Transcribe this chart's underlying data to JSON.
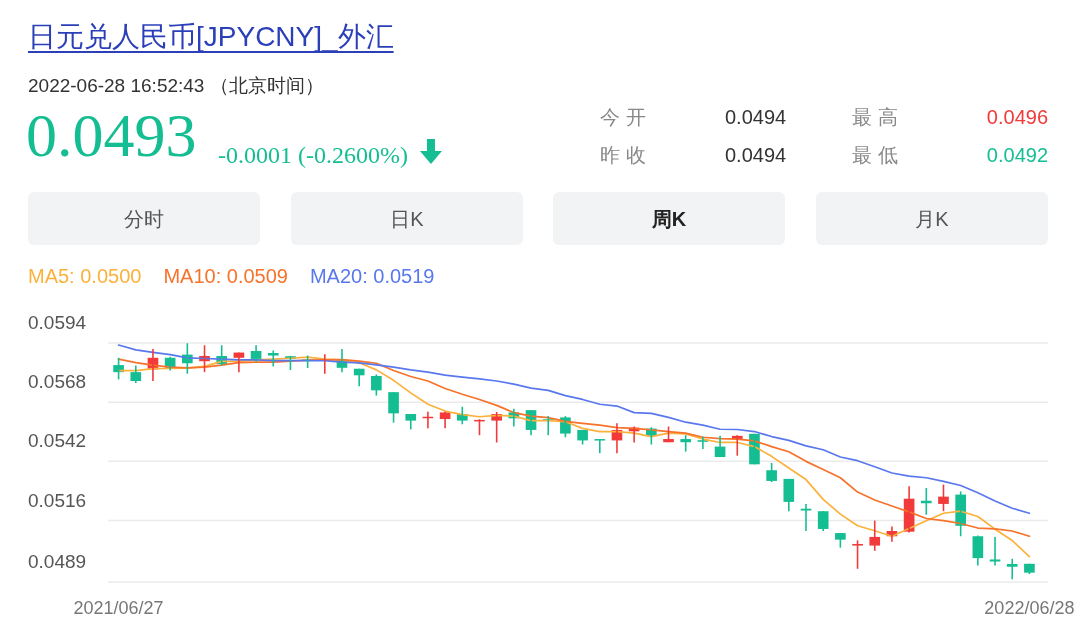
{
  "chart_data": {
    "type": "candlestick",
    "title": "日元兑人民币[JPYCNY]_外汇",
    "subtitle": "2022-06-28 16:52:43 （北京时间）",
    "annotations": [
      "0.0493",
      "-0.0001 (-0.2600%)",
      "今 开",
      "0.0494",
      "最 高",
      "0.0496",
      "昨 收",
      "0.0494",
      "最 低",
      "0.0492",
      "分时",
      "日K",
      "周K",
      "月K"
    ],
    "categories": [
      "2021/06/27",
      null,
      null,
      null,
      null,
      null,
      null,
      null,
      null,
      null,
      null,
      null,
      null,
      null,
      null,
      null,
      null,
      null,
      null,
      null,
      null,
      null,
      null,
      null,
      null,
      null,
      null,
      null,
      null,
      null,
      null,
      null,
      null,
      null,
      null,
      null,
      null,
      null,
      null,
      null,
      null,
      null,
      null,
      null,
      null,
      null,
      null,
      null,
      null,
      null,
      null,
      null,
      null,
      "2022/06/28"
    ],
    "ohlc": [
      [
        0.05843,
        0.05875,
        0.0578,
        0.05812
      ],
      [
        0.05812,
        0.05841,
        0.05764,
        0.05773
      ],
      [
        0.05824,
        0.05914,
        0.05773,
        0.05875
      ],
      [
        0.05875,
        0.0588,
        0.05819,
        0.05831
      ],
      [
        0.05889,
        0.05939,
        0.05805,
        0.05851
      ],
      [
        0.0586,
        0.0593,
        0.05812,
        0.05883
      ],
      [
        0.05883,
        0.0593,
        0.05841,
        0.05847
      ],
      [
        0.05875,
        0.05898,
        0.05812,
        0.05898
      ],
      [
        0.05905,
        0.0593,
        0.05856,
        0.0587
      ],
      [
        0.05896,
        0.05907,
        0.05837,
        0.05885
      ],
      [
        0.05882,
        0.05883,
        0.05821,
        0.0587
      ],
      [
        0.05867,
        0.05885,
        0.0583,
        0.05865
      ],
      [
        0.05866,
        0.05891,
        0.05805,
        0.05869
      ],
      [
        0.05867,
        0.05914,
        0.05812,
        0.05831
      ],
      [
        0.05827,
        0.05827,
        0.0575,
        0.05798
      ],
      [
        0.05795,
        0.05802,
        0.05709,
        0.05732
      ],
      [
        0.05724,
        0.05724,
        0.0559,
        0.05631
      ],
      [
        0.05628,
        0.05628,
        0.0556,
        0.05599
      ],
      [
        0.05613,
        0.05638,
        0.05565,
        0.05616
      ],
      [
        0.05606,
        0.05638,
        0.05565,
        0.05635
      ],
      [
        0.05628,
        0.0566,
        0.05583,
        0.05599
      ],
      [
        0.05599,
        0.05605,
        0.05535,
        0.05602
      ],
      [
        0.05599,
        0.05637,
        0.05503,
        0.05628
      ],
      [
        0.05635,
        0.05651,
        0.05573,
        0.05609
      ],
      [
        0.05645,
        0.05645,
        0.05535,
        0.05558
      ],
      [
        0.05605,
        0.05619,
        0.05535,
        0.05602
      ],
      [
        0.05613,
        0.05619,
        0.05526,
        0.05542
      ],
      [
        0.05558,
        0.05558,
        0.05494,
        0.05512
      ],
      [
        0.05518,
        0.05518,
        0.05456,
        0.05515
      ],
      [
        0.05512,
        0.05587,
        0.05456,
        0.05558
      ],
      [
        0.05552,
        0.05573,
        0.05503,
        0.05568
      ],
      [
        0.05564,
        0.0557,
        0.05494,
        0.05532
      ],
      [
        0.05504,
        0.05573,
        0.05504,
        0.05518
      ],
      [
        0.05518,
        0.05535,
        0.05463,
        0.05504
      ],
      [
        0.05513,
        0.05529,
        0.05474,
        0.05506
      ],
      [
        0.05485,
        0.05532,
        0.05439,
        0.05439
      ],
      [
        0.05518,
        0.05535,
        0.05445,
        0.05532
      ],
      [
        0.05541,
        0.05541,
        0.05407,
        0.05407
      ],
      [
        0.05381,
        0.05413,
        0.05329,
        0.05334
      ],
      [
        0.05343,
        0.05343,
        0.05201,
        0.05242
      ],
      [
        0.05212,
        0.05233,
        0.05114,
        0.05204
      ],
      [
        0.05201,
        0.05201,
        0.05114,
        0.05123
      ],
      [
        0.05105,
        0.05105,
        0.05041,
        0.05076
      ],
      [
        0.0505,
        0.05073,
        0.04948,
        0.05057
      ],
      [
        0.0505,
        0.0516,
        0.05027,
        0.05088
      ],
      [
        0.05091,
        0.05134,
        0.05067,
        0.05114
      ],
      [
        0.05111,
        0.05311,
        0.05108,
        0.05256
      ],
      [
        0.05247,
        0.05303,
        0.05186,
        0.05236
      ],
      [
        0.05233,
        0.05318,
        0.05201,
        0.05265
      ],
      [
        0.05274,
        0.05288,
        0.05091,
        0.05137
      ],
      [
        0.05091,
        0.05094,
        0.04963,
        0.04995
      ],
      [
        0.04989,
        0.05088,
        0.04963,
        0.0498
      ],
      [
        0.04969,
        0.04992,
        0.04902,
        0.04957
      ],
      [
        0.0497,
        0.0497,
        0.04925,
        0.04931
      ]
    ],
    "series": [
      {
        "type": "line",
        "name": "MA5: 0.0500",
        "color": "#fbb13c",
        "values": [
          0.05819,
          0.05819,
          0.05827,
          0.05828,
          0.0583,
          0.05837,
          0.05859,
          0.05859,
          0.05866,
          0.05869,
          0.05873,
          0.05878,
          0.05869,
          0.05866,
          0.05853,
          0.05822,
          0.05776,
          0.05721,
          0.05671,
          0.05641,
          0.05625,
          0.05616,
          0.05622,
          0.05619,
          0.05599,
          0.05599,
          0.05594,
          0.05565,
          0.05551,
          0.05551,
          0.05544,
          0.05529,
          0.05544,
          0.05541,
          0.05518,
          0.05503,
          0.05503,
          0.05485,
          0.05442,
          0.05391,
          0.0534,
          0.05253,
          0.05188,
          0.05137,
          0.05115,
          0.05091,
          0.05125,
          0.05159,
          0.05192,
          0.05201,
          0.05178,
          0.05122,
          0.05072,
          0.05002
        ]
      },
      {
        "type": "line",
        "name": "MA10: 0.0509",
        "color": "#f7722a",
        "values": [
          0.05869,
          0.05854,
          0.05843,
          0.05834,
          0.05831,
          0.05834,
          0.05843,
          0.05854,
          0.05856,
          0.05856,
          0.0586,
          0.05865,
          0.05866,
          0.05867,
          0.0586,
          0.05851,
          0.05819,
          0.05793,
          0.05773,
          0.0574,
          0.05715,
          0.05692,
          0.05666,
          0.05634,
          0.05619,
          0.05612,
          0.05596,
          0.05587,
          0.05579,
          0.05568,
          0.05565,
          0.05558,
          0.05551,
          0.05544,
          0.05526,
          0.0552,
          0.05518,
          0.0551,
          0.05485,
          0.05462,
          0.0542,
          0.05384,
          0.05348,
          0.05285,
          0.0525,
          0.05224,
          0.05198,
          0.05169,
          0.0516,
          0.05147,
          0.05127,
          0.05123,
          0.05114,
          0.05091
        ]
      },
      {
        "type": "line",
        "name": "MA20: 0.0519",
        "color": "#5a78ee",
        "values": [
          0.05931,
          0.0591,
          0.05899,
          0.05889,
          0.05875,
          0.05872,
          0.05869,
          0.05866,
          0.05866,
          0.05863,
          0.05863,
          0.05863,
          0.05862,
          0.05856,
          0.05853,
          0.05844,
          0.05834,
          0.05822,
          0.05812,
          0.05799,
          0.0579,
          0.05782,
          0.05773,
          0.05759,
          0.05742,
          0.05732,
          0.05709,
          0.05692,
          0.05671,
          0.05663,
          0.05634,
          0.05631,
          0.05613,
          0.05592,
          0.05579,
          0.05561,
          0.0556,
          0.05551,
          0.05529,
          0.05512,
          0.05488,
          0.05471,
          0.05439,
          0.05423,
          0.05396,
          0.05369,
          0.05355,
          0.05348,
          0.05332,
          0.05314,
          0.05282,
          0.05246,
          0.05214,
          0.05192
        ]
      }
    ],
    "ylim": [
      0.0489,
      0.0594
    ],
    "yticks": [
      0.0594,
      0.0568,
      0.0542,
      0.0516,
      0.0489
    ],
    "grid": "y",
    "legend": "top left"
  }
}
